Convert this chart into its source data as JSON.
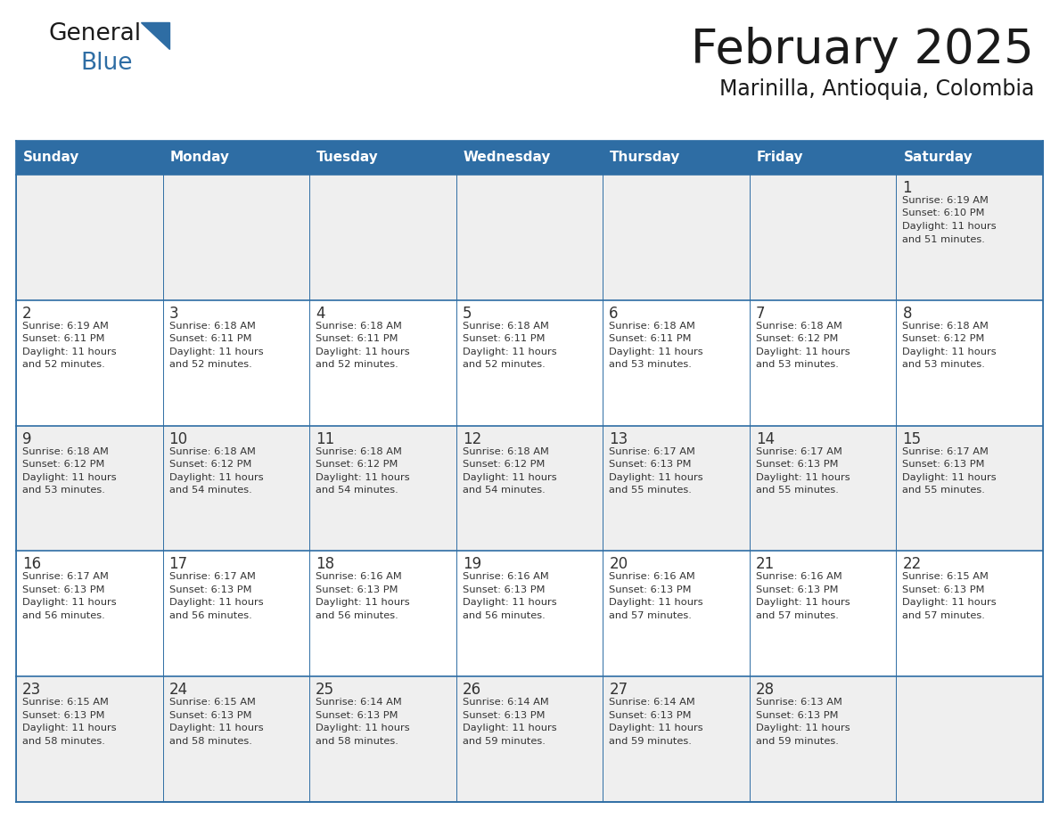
{
  "title": "February 2025",
  "subtitle": "Marinilla, Antioquia, Colombia",
  "header_color": "#2E6DA4",
  "header_text_color": "#FFFFFF",
  "days_of_week": [
    "Sunday",
    "Monday",
    "Tuesday",
    "Wednesday",
    "Thursday",
    "Friday",
    "Saturday"
  ],
  "bg_color": "#FFFFFF",
  "row_colors": [
    "#EFEFEF",
    "#FFFFFF",
    "#EFEFEF",
    "#FFFFFF",
    "#EFEFEF"
  ],
  "grid_color": "#2E6DA4",
  "day_number_color": "#333333",
  "info_text_color": "#333333",
  "logo_general_color": "#1a1a1a",
  "logo_blue_color": "#2E6DA4",
  "logo_triangle_color": "#2E6DA4",
  "title_color": "#1a1a1a",
  "subtitle_color": "#1a1a1a",
  "calendar_data": [
    [
      null,
      null,
      null,
      null,
      null,
      null,
      {
        "day": 1,
        "sunrise": "6:19 AM",
        "sunset": "6:10 PM",
        "daylight_h": "11 hours",
        "daylight_m": "51 minutes."
      }
    ],
    [
      {
        "day": 2,
        "sunrise": "6:19 AM",
        "sunset": "6:11 PM",
        "daylight_h": "11 hours",
        "daylight_m": "52 minutes."
      },
      {
        "day": 3,
        "sunrise": "6:18 AM",
        "sunset": "6:11 PM",
        "daylight_h": "11 hours",
        "daylight_m": "52 minutes."
      },
      {
        "day": 4,
        "sunrise": "6:18 AM",
        "sunset": "6:11 PM",
        "daylight_h": "11 hours",
        "daylight_m": "52 minutes."
      },
      {
        "day": 5,
        "sunrise": "6:18 AM",
        "sunset": "6:11 PM",
        "daylight_h": "11 hours",
        "daylight_m": "52 minutes."
      },
      {
        "day": 6,
        "sunrise": "6:18 AM",
        "sunset": "6:11 PM",
        "daylight_h": "11 hours",
        "daylight_m": "53 minutes."
      },
      {
        "day": 7,
        "sunrise": "6:18 AM",
        "sunset": "6:12 PM",
        "daylight_h": "11 hours",
        "daylight_m": "53 minutes."
      },
      {
        "day": 8,
        "sunrise": "6:18 AM",
        "sunset": "6:12 PM",
        "daylight_h": "11 hours",
        "daylight_m": "53 minutes."
      }
    ],
    [
      {
        "day": 9,
        "sunrise": "6:18 AM",
        "sunset": "6:12 PM",
        "daylight_h": "11 hours",
        "daylight_m": "53 minutes."
      },
      {
        "day": 10,
        "sunrise": "6:18 AM",
        "sunset": "6:12 PM",
        "daylight_h": "11 hours",
        "daylight_m": "54 minutes."
      },
      {
        "day": 11,
        "sunrise": "6:18 AM",
        "sunset": "6:12 PM",
        "daylight_h": "11 hours",
        "daylight_m": "54 minutes."
      },
      {
        "day": 12,
        "sunrise": "6:18 AM",
        "sunset": "6:12 PM",
        "daylight_h": "11 hours",
        "daylight_m": "54 minutes."
      },
      {
        "day": 13,
        "sunrise": "6:17 AM",
        "sunset": "6:13 PM",
        "daylight_h": "11 hours",
        "daylight_m": "55 minutes."
      },
      {
        "day": 14,
        "sunrise": "6:17 AM",
        "sunset": "6:13 PM",
        "daylight_h": "11 hours",
        "daylight_m": "55 minutes."
      },
      {
        "day": 15,
        "sunrise": "6:17 AM",
        "sunset": "6:13 PM",
        "daylight_h": "11 hours",
        "daylight_m": "55 minutes."
      }
    ],
    [
      {
        "day": 16,
        "sunrise": "6:17 AM",
        "sunset": "6:13 PM",
        "daylight_h": "11 hours",
        "daylight_m": "56 minutes."
      },
      {
        "day": 17,
        "sunrise": "6:17 AM",
        "sunset": "6:13 PM",
        "daylight_h": "11 hours",
        "daylight_m": "56 minutes."
      },
      {
        "day": 18,
        "sunrise": "6:16 AM",
        "sunset": "6:13 PM",
        "daylight_h": "11 hours",
        "daylight_m": "56 minutes."
      },
      {
        "day": 19,
        "sunrise": "6:16 AM",
        "sunset": "6:13 PM",
        "daylight_h": "11 hours",
        "daylight_m": "56 minutes."
      },
      {
        "day": 20,
        "sunrise": "6:16 AM",
        "sunset": "6:13 PM",
        "daylight_h": "11 hours",
        "daylight_m": "57 minutes."
      },
      {
        "day": 21,
        "sunrise": "6:16 AM",
        "sunset": "6:13 PM",
        "daylight_h": "11 hours",
        "daylight_m": "57 minutes."
      },
      {
        "day": 22,
        "sunrise": "6:15 AM",
        "sunset": "6:13 PM",
        "daylight_h": "11 hours",
        "daylight_m": "57 minutes."
      }
    ],
    [
      {
        "day": 23,
        "sunrise": "6:15 AM",
        "sunset": "6:13 PM",
        "daylight_h": "11 hours",
        "daylight_m": "58 minutes."
      },
      {
        "day": 24,
        "sunrise": "6:15 AM",
        "sunset": "6:13 PM",
        "daylight_h": "11 hours",
        "daylight_m": "58 minutes."
      },
      {
        "day": 25,
        "sunrise": "6:14 AM",
        "sunset": "6:13 PM",
        "daylight_h": "11 hours",
        "daylight_m": "58 minutes."
      },
      {
        "day": 26,
        "sunrise": "6:14 AM",
        "sunset": "6:13 PM",
        "daylight_h": "11 hours",
        "daylight_m": "59 minutes."
      },
      {
        "day": 27,
        "sunrise": "6:14 AM",
        "sunset": "6:13 PM",
        "daylight_h": "11 hours",
        "daylight_m": "59 minutes."
      },
      {
        "day": 28,
        "sunrise": "6:13 AM",
        "sunset": "6:13 PM",
        "daylight_h": "11 hours",
        "daylight_m": "59 minutes."
      },
      null
    ]
  ]
}
